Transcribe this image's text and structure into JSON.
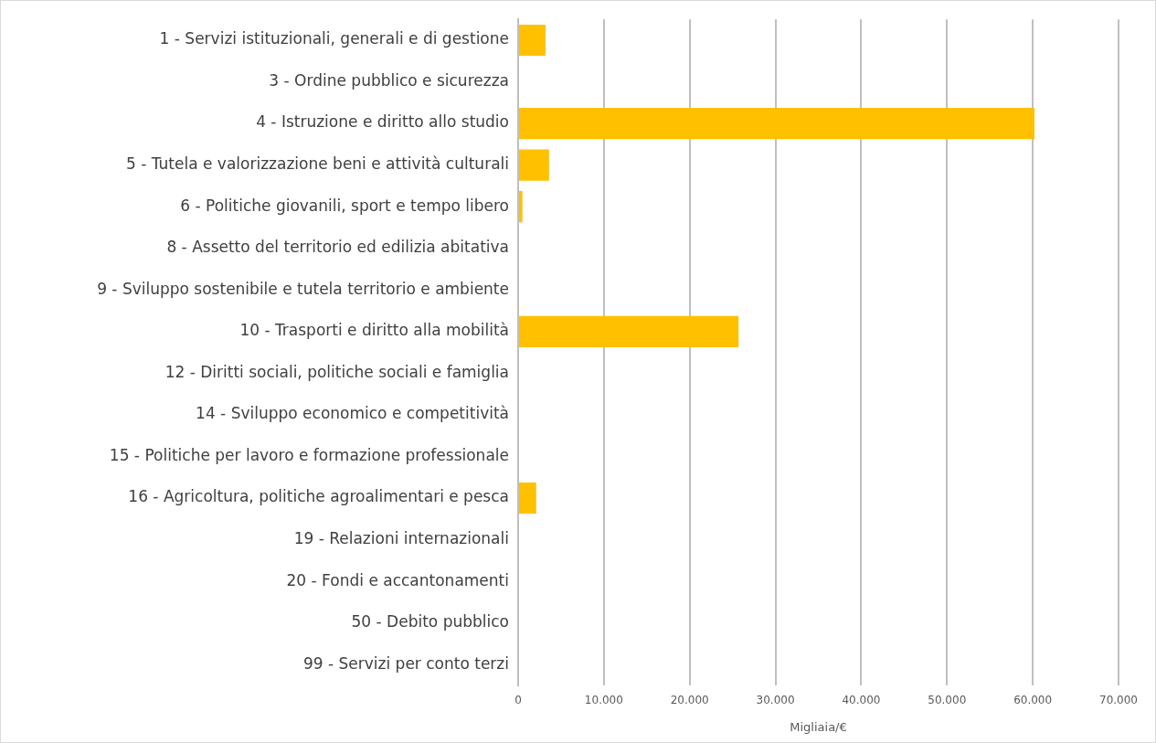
{
  "chart_data": {
    "type": "bar",
    "orientation": "horizontal",
    "xlabel": "Migliaia/€",
    "categories": [
      "1 - Servizi istituzionali, generali e di gestione",
      "3 - Ordine pubblico e sicurezza",
      "4 - Istruzione e diritto allo studio",
      "5 - Tutela e valorizzazione beni e attività culturali",
      "6 - Politiche giovanili, sport e tempo libero",
      "8 - Assetto del territorio ed edilizia abitativa",
      "9 - Sviluppo sostenibile e tutela territorio e ambiente",
      "10 - Trasporti e diritto alla mobilità",
      "12 - Diritti sociali, politiche sociali e famiglia",
      "14 - Sviluppo economico e competitività",
      "15 - Politiche per lavoro e formazione professionale",
      "16 - Agricoltura, politiche agroalimentari e pesca",
      "19 - Relazioni internazionali",
      "20 - Fondi e accantonamenti",
      "50 - Debito pubblico",
      "99 - Servizi per conto terzi"
    ],
    "values": [
      3200,
      0,
      60200,
      3600,
      500,
      0,
      0,
      25700,
      0,
      0,
      0,
      2100,
      0,
      0,
      0,
      0
    ],
    "color": "#ffc000",
    "xlim": [
      0,
      70000
    ],
    "xticks": [
      0,
      {
        "value": 10000,
        "label": "10.000"
      },
      {
        "value": 20000,
        "label": "20.000"
      },
      {
        "value": 30000,
        "label": "30.000"
      },
      {
        "value": 40000,
        "label": "40.000"
      },
      {
        "value": 50000,
        "label": "50.000"
      },
      {
        "value": 60000,
        "label": "60.000"
      },
      {
        "value": 70000,
        "label": "70.000"
      }
    ],
    "grid": "x",
    "legend": false
  }
}
